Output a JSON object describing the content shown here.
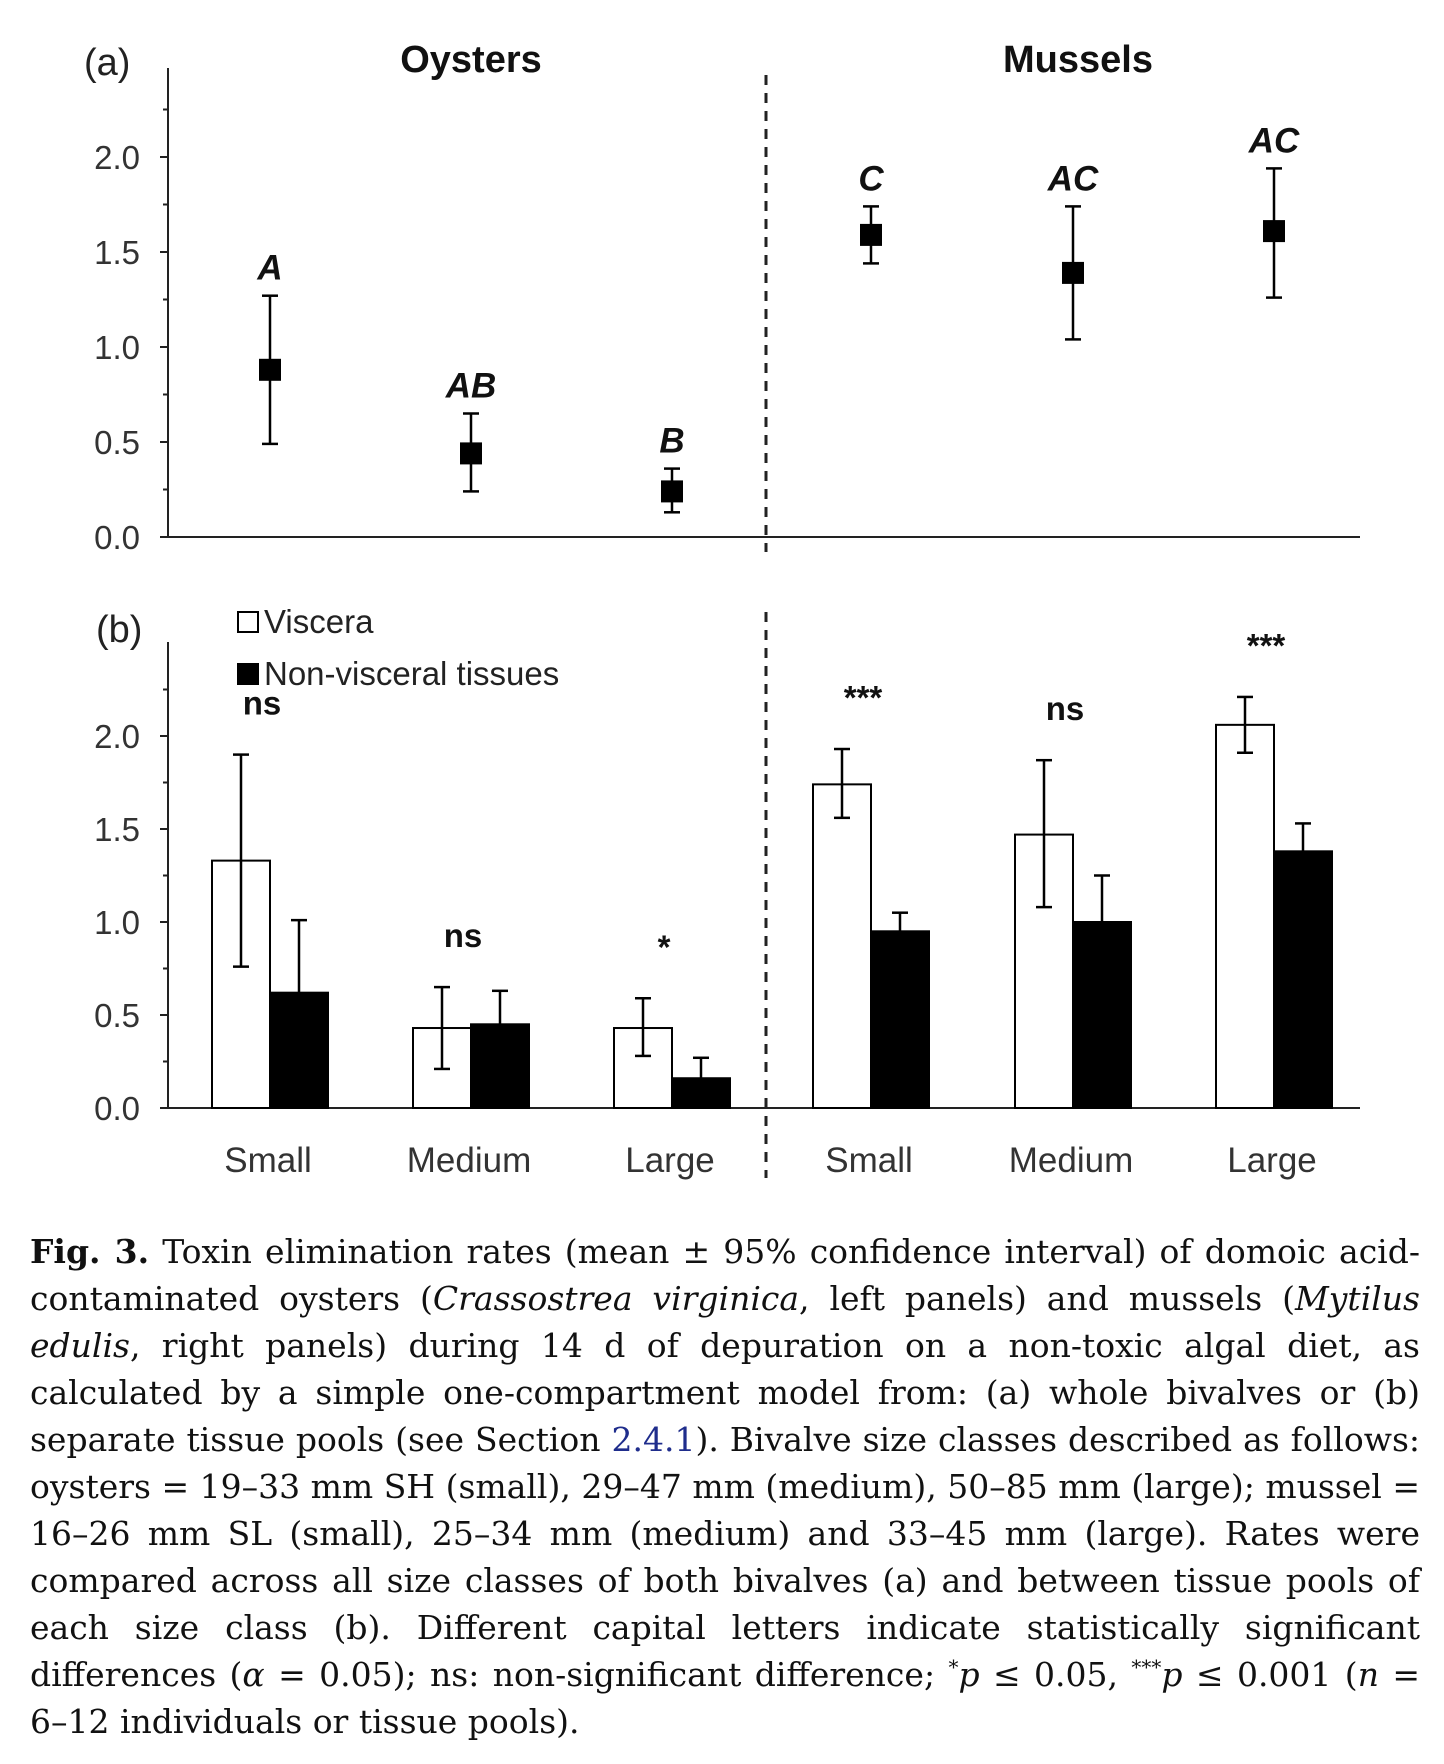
{
  "chart_data": [
    {
      "panel": "a",
      "panel_label": "(a)",
      "type": "scatter",
      "group_titles": [
        "Oysters",
        "Mussels"
      ],
      "categories": [
        "Small",
        "Medium",
        "Large",
        "Small",
        "Medium",
        "Large"
      ],
      "groups": [
        "Oysters",
        "Oysters",
        "Oysters",
        "Mussels",
        "Mussels",
        "Mussels"
      ],
      "values": [
        0.88,
        0.44,
        0.24,
        1.59,
        1.39,
        1.61
      ],
      "error_low": [
        0.49,
        0.24,
        0.13,
        1.44,
        1.04,
        1.26
      ],
      "error_high": [
        1.27,
        0.65,
        0.36,
        1.74,
        1.74,
        1.94
      ],
      "point_labels": [
        "A",
        "AB",
        "B",
        "C",
        "AC",
        "AC"
      ],
      "ylim": [
        0,
        2.5
      ],
      "yticks": [
        "0.0",
        "0.5",
        "1.0",
        "1.5",
        "2.0"
      ],
      "marker_color": "#000000"
    },
    {
      "panel": "b",
      "panel_label": "(b)",
      "type": "bar",
      "categories": [
        "Small",
        "Medium",
        "Large",
        "Small",
        "Medium",
        "Large"
      ],
      "series": [
        {
          "name": "Viscera",
          "color": "#ffffff",
          "values": [
            1.33,
            0.43,
            0.43,
            1.74,
            1.47,
            2.06
          ],
          "error_low": [
            0.76,
            0.21,
            0.28,
            1.56,
            1.08,
            1.91
          ],
          "error_high": [
            1.9,
            0.65,
            0.59,
            1.93,
            1.87,
            2.21
          ]
        },
        {
          "name": "Non-visceral tissues",
          "color": "#000000",
          "values": [
            0.62,
            0.45,
            0.16,
            0.95,
            1.0,
            1.38
          ],
          "error_low": [
            0.62,
            0.45,
            0.16,
            0.95,
            1.0,
            1.38
          ],
          "error_high": [
            1.01,
            0.63,
            0.27,
            1.05,
            1.25,
            1.53
          ]
        }
      ],
      "significance": [
        "ns",
        "ns",
        "*",
        "***",
        "ns",
        "***"
      ],
      "ylim": [
        0,
        2.5
      ],
      "yticks": [
        "0.0",
        "0.5",
        "1.0",
        "1.5",
        "2.0"
      ],
      "legend": "top-left"
    }
  ],
  "caption": {
    "label": "Fig. 3.",
    "t1": "Toxin elimination rates (mean ± 95% confidence interval) of domoic acid-contaminated oysters (",
    "oyster_species": "Crassostrea virginica",
    "t2": ", left panels) and mussels (",
    "mussel_species": "Mytilus edulis",
    "t3": ", right panels) during 14 d of depuration on a non-toxic algal diet, as calculated by a simple one-compartment model from: (a) whole bivalves or (b) separate tissue pools (see Section ",
    "section_link": "2.4.1",
    "t4": "). Bivalve size classes described as follows: oysters = 19–33 mm SH (small), 29–47 mm (medium), 50–85 mm (large); mussel = 16–26 mm SL (small), 25–34 mm (medium) and 33–45 mm (large). Rates were compared across all size classes of both bivalves (a) and between tissue pools of each size class (b). Different capital letters indicate statistically significant differences (",
    "alpha": "α",
    "t5": " = 0.05); ns: non-significant difference; ",
    "sup1": "*",
    "p1": "p",
    "t6": " ≤ 0.05, ",
    "sup2": "***",
    "p2": "p",
    "t7": " ≤ 0.001 (",
    "n": "n",
    "t8": " = 6–12 individuals or tissue pools)."
  }
}
